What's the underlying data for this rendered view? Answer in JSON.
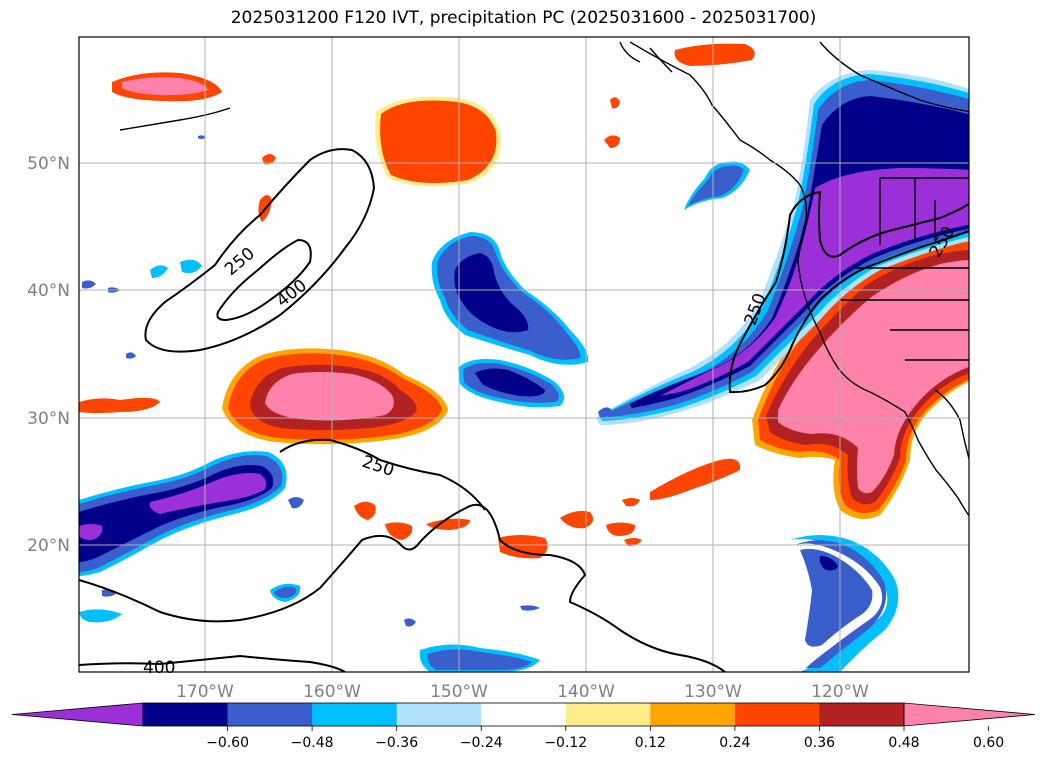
{
  "title": "2025031200 F120 IVT, precipitation PC (2025031600 - 2025031700)",
  "map": {
    "lon_labels": [
      "170°W",
      "160°W",
      "150°W",
      "140°W",
      "130°W",
      "120°W"
    ],
    "lat_labels": [
      "50°N",
      "40°N",
      "30°N",
      "20°N"
    ],
    "ivt_contour_labels": [
      "250",
      "400",
      "250",
      "250",
      "250",
      "400"
    ]
  },
  "colorbar": {
    "colors": [
      "#9b30d9",
      "#00008b",
      "#3a5fcd",
      "#00bfff",
      "#b0e2ff",
      "#ffffff",
      "#ffec8b",
      "#ffa500",
      "#ff4500",
      "#b22222",
      "#ff82ab"
    ],
    "ticks": [
      "−0.60",
      "−0.48",
      "−0.36",
      "−0.24",
      "−0.12",
      "0.12",
      "0.24",
      "0.36",
      "0.48",
      "0.60"
    ]
  },
  "colors": {
    "pink": "#ff82ab",
    "darkred": "#b22222",
    "orangered": "#ff4500",
    "orange": "#ffa500",
    "yellow": "#ffec8b",
    "purple": "#9b30d9",
    "navy": "#00008b",
    "royal": "#3a5fcd",
    "sky": "#00bfff",
    "lightblue": "#b0e2ff"
  }
}
